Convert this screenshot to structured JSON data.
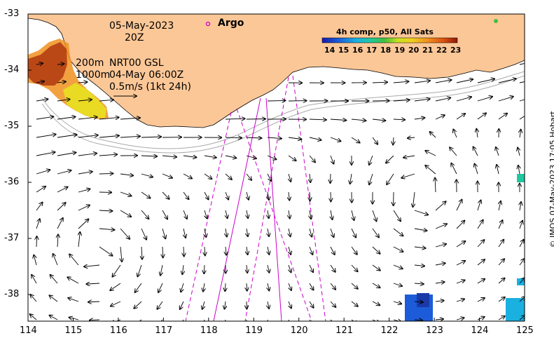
{
  "map": {
    "date": "05-May-2023",
    "time": "20Z",
    "argo_label": "Argo",
    "depth_label_1": "200m",
    "depth_label_2": "1000m",
    "product_label": "NRT00 GSL",
    "product_date": "04-May 06:00Z",
    "scale_label": "0.5m/s (1kt 24h)",
    "colorbar_title": "4h comp, p50, All Sats",
    "colorbar_ticks": [
      "14",
      "15",
      "16",
      "17",
      "18",
      "19",
      "20",
      "21",
      "22",
      "23"
    ],
    "credit": "© IMOS 07-May-2023 17:05 Hobart",
    "lon_ticks": [
      "114",
      "115",
      "116",
      "117",
      "118",
      "119",
      "120",
      "121",
      "122",
      "123",
      "124",
      "125"
    ],
    "lat_ticks": [
      "-33",
      "-34",
      "-35",
      "-36",
      "-37",
      "-38"
    ],
    "land_color": "#fcc797",
    "track_color": "#cc00cc"
  }
}
